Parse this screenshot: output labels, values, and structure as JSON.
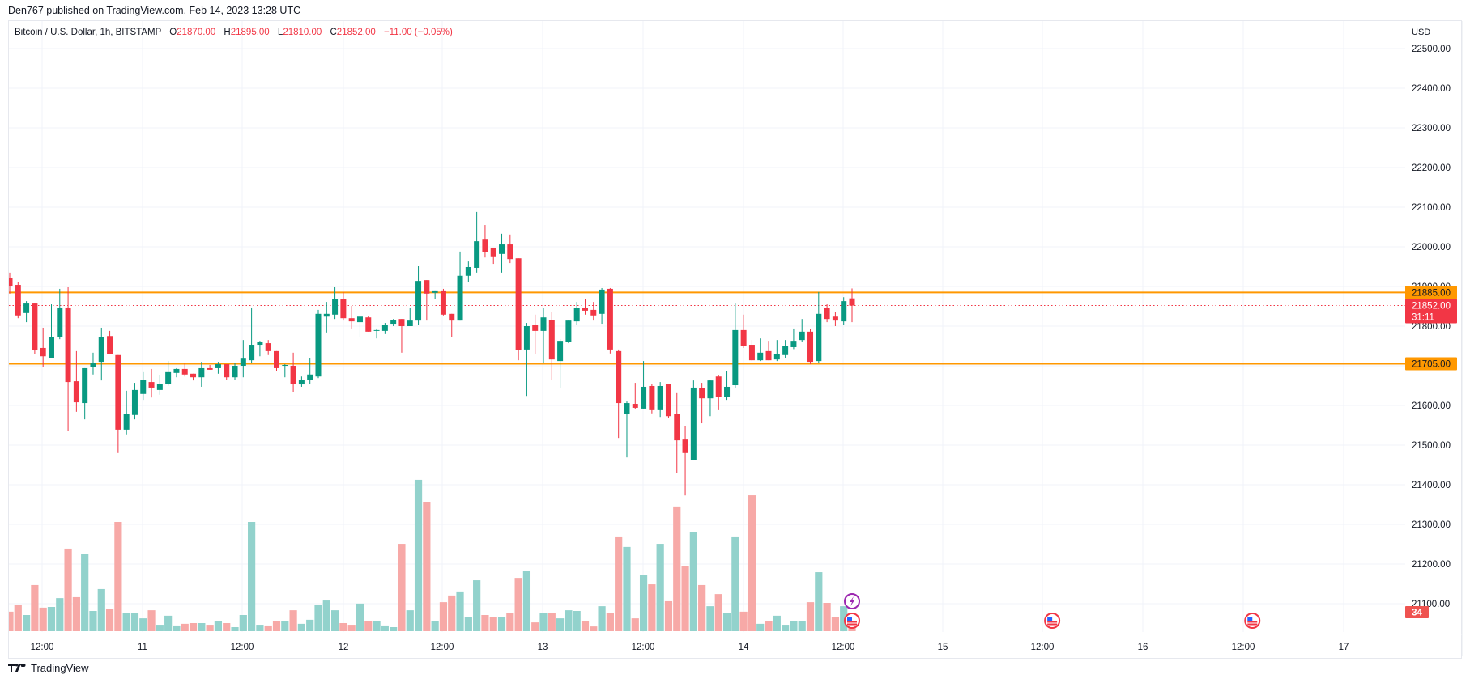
{
  "header": {
    "published_line": "Den767 published on TradingView.com, Feb 14, 2023 13:28 UTC"
  },
  "legend": {
    "symbol": "Bitcoin / U.S. Dollar, 1h, BITSTAMP",
    "open_key": "O",
    "open": "21870.00",
    "high_key": "H",
    "high": "21895.00",
    "low_key": "L",
    "low": "21810.00",
    "close_key": "C",
    "close": "21852.00",
    "change": "−11.00 (−0.05%)"
  },
  "price_axis": {
    "currency": "USD",
    "ticks": [
      "22500.00",
      "22400.00",
      "22300.00",
      "22200.00",
      "22100.00",
      "22000.00",
      "21900.00",
      "21800.00",
      "21700.00",
      "21600.00",
      "21500.00",
      "21400.00",
      "21300.00",
      "21200.00",
      "21100.00"
    ],
    "labels": [
      {
        "text": "21885.00",
        "price": 21885,
        "color": "#ff9800",
        "line": "solid"
      },
      {
        "text": "21705.00",
        "price": 21705,
        "color": "#ff9800",
        "line": "solid"
      },
      {
        "text": "21852.00",
        "sub": "31:11",
        "price": 21852,
        "color": "#f23645",
        "line": "dotted"
      }
    ],
    "volume_badge": {
      "text": "34",
      "color": "#ef5350"
    }
  },
  "time_axis": {
    "labels": [
      "12:00",
      "11",
      "12:00",
      "12",
      "12:00",
      "13",
      "12:00",
      "14",
      "12:00",
      "15",
      "12:00",
      "16",
      "12:00",
      "17"
    ]
  },
  "events": [
    {
      "type": "lightning-icon",
      "candle": 101,
      "row": 0,
      "color": "#9c27b0"
    },
    {
      "type": "us-flag-icon",
      "candle": 101,
      "row": 1,
      "color": "#f23645"
    },
    {
      "type": "us-flag-icon",
      "candle": 125,
      "row": 1,
      "color": "#f23645"
    },
    {
      "type": "us-flag-icon",
      "candle": 149,
      "row": 1,
      "color": "#f23645"
    }
  ],
  "footer": {
    "brand": "TradingView"
  },
  "colors": {
    "up": "#089981",
    "down": "#f23645",
    "vol_up": "#92d2cc",
    "vol_down": "#f7a9a7",
    "level": "#ff9800",
    "grid": "#f0f3fa"
  },
  "chart_data": {
    "type": "candlestick",
    "title": "Bitcoin / U.S. Dollar, 1h, BITSTAMP",
    "xlabel": "",
    "ylabel": "USD",
    "ylim": [
      21070,
      22530
    ],
    "grid": true,
    "x_start": "Feb 10 08:00",
    "interval": "1h",
    "horizontal_levels": [
      21885,
      21705
    ],
    "last_price": 21852,
    "fields": [
      "open",
      "high",
      "low",
      "close",
      "volume"
    ],
    "candles": [
      [
        21922,
        21935,
        21882,
        21902,
        82
      ],
      [
        21904,
        21912,
        21820,
        21827,
        109
      ],
      [
        21833,
        21863,
        21810,
        21857,
        68
      ],
      [
        21857,
        21857,
        21729,
        21739,
        194
      ],
      [
        21745,
        21796,
        21696,
        21724,
        99
      ],
      [
        21720,
        21855,
        21720,
        21773,
        102
      ],
      [
        21773,
        21894,
        21767,
        21847,
        139
      ],
      [
        21847,
        21898,
        21535,
        21659,
        347
      ],
      [
        21661,
        21737,
        21584,
        21608,
        143
      ],
      [
        21606,
        21694,
        21565,
        21694,
        326
      ],
      [
        21696,
        21733,
        21678,
        21706,
        85
      ],
      [
        21710,
        21796,
        21663,
        21773,
        177
      ],
      [
        21775,
        21788,
        21729,
        21729,
        92
      ],
      [
        21727,
        21727,
        21480,
        21539,
        459
      ],
      [
        21539,
        21637,
        21527,
        21578,
        78
      ],
      [
        21576,
        21657,
        21565,
        21639,
        75
      ],
      [
        21629,
        21684,
        21614,
        21665,
        54
      ],
      [
        21659,
        21692,
        21620,
        21645,
        88
      ],
      [
        21639,
        21676,
        21627,
        21655,
        27
      ],
      [
        21655,
        21712,
        21650,
        21684,
        65
      ],
      [
        21682,
        21694,
        21671,
        21692,
        24
      ],
      [
        21692,
        21708,
        21673,
        21678,
        31
      ],
      [
        21680,
        21680,
        21663,
        21671,
        34
      ],
      [
        21671,
        21710,
        21647,
        21694,
        34
      ],
      [
        21694,
        21702,
        21690,
        21690,
        27
      ],
      [
        21694,
        21710,
        21680,
        21704,
        44
      ],
      [
        21704,
        21704,
        21665,
        21671,
        34
      ],
      [
        21671,
        21706,
        21665,
        21700,
        17
      ],
      [
        21700,
        21765,
        21671,
        21718,
        68
      ],
      [
        21714,
        21847,
        21706,
        21753,
        459
      ],
      [
        21753,
        21763,
        21724,
        21761,
        27
      ],
      [
        21757,
        21765,
        21727,
        21737,
        24
      ],
      [
        21737,
        21737,
        21686,
        21694,
        41
      ],
      [
        21700,
        21704,
        21671,
        21702,
        41
      ],
      [
        21700,
        21733,
        21633,
        21655,
        88
      ],
      [
        21653,
        21673,
        21647,
        21665,
        31
      ],
      [
        21665,
        21720,
        21653,
        21678,
        48
      ],
      [
        21673,
        21841,
        21669,
        21831,
        112
      ],
      [
        21824,
        21861,
        21784,
        21831,
        129
      ],
      [
        21829,
        21898,
        21818,
        21869,
        88
      ],
      [
        21869,
        21886,
        21814,
        21820,
        34
      ],
      [
        21820,
        21851,
        21794,
        21812,
        27
      ],
      [
        21810,
        21824,
        21773,
        21824,
        116
      ],
      [
        21822,
        21826,
        21786,
        21786,
        41
      ],
      [
        21788,
        21794,
        21769,
        21790,
        41
      ],
      [
        21788,
        21808,
        21780,
        21804,
        24
      ],
      [
        21806,
        21818,
        21800,
        21816,
        17
      ],
      [
        21818,
        21818,
        21733,
        21800,
        367
      ],
      [
        21800,
        21847,
        21800,
        21814,
        88
      ],
      [
        21814,
        21951,
        21804,
        21914,
        636
      ],
      [
        21916,
        21916,
        21814,
        21882,
        544
      ],
      [
        21884,
        21890,
        21869,
        21890,
        44
      ],
      [
        21890,
        21894,
        21827,
        21829,
        122
      ],
      [
        21831,
        21831,
        21773,
        21814,
        150
      ],
      [
        21814,
        21988,
        21814,
        21927,
        167
      ],
      [
        21927,
        21963,
        21912,
        21949,
        58
      ],
      [
        21947,
        22088,
        21935,
        22014,
        214
      ],
      [
        22020,
        22055,
        21973,
        21986,
        68
      ],
      [
        21998,
        21998,
        21957,
        21976,
        58
      ],
      [
        21982,
        22033,
        21935,
        22006,
        58
      ],
      [
        22006,
        22031,
        21959,
        21969,
        75
      ],
      [
        21971,
        21971,
        21714,
        21739,
        224
      ],
      [
        21741,
        21808,
        21624,
        21800,
        255
      ],
      [
        21804,
        21829,
        21729,
        21788,
        37
      ],
      [
        21788,
        21845,
        21706,
        21822,
        75
      ],
      [
        21816,
        21835,
        21665,
        21716,
        78
      ],
      [
        21712,
        21767,
        21645,
        21763,
        54
      ],
      [
        21761,
        21814,
        21757,
        21814,
        88
      ],
      [
        21812,
        21861,
        21804,
        21845,
        85
      ],
      [
        21845,
        21869,
        21829,
        21839,
        44
      ],
      [
        21841,
        21861,
        21814,
        21827,
        20
      ],
      [
        21831,
        21896,
        21806,
        21892,
        105
      ],
      [
        21894,
        21896,
        21731,
        21741,
        78
      ],
      [
        21737,
        21741,
        21518,
        21606,
        398
      ],
      [
        21578,
        21610,
        21469,
        21606,
        354
      ],
      [
        21604,
        21657,
        21590,
        21594,
        54
      ],
      [
        21592,
        21712,
        21590,
        21647,
        235
      ],
      [
        21649,
        21655,
        21580,
        21588,
        197
      ],
      [
        21588,
        21659,
        21571,
        21649,
        367
      ],
      [
        21655,
        21655,
        21569,
        21573,
        126
      ],
      [
        21578,
        21631,
        21429,
        21512,
        524
      ],
      [
        21514,
        21549,
        21373,
        21480,
        275
      ],
      [
        21462,
        21663,
        21462,
        21645,
        415
      ],
      [
        21643,
        21657,
        21555,
        21618,
        194
      ],
      [
        21618,
        21665,
        21573,
        21663,
        105
      ],
      [
        21673,
        21676,
        21588,
        21622,
        156
      ],
      [
        21622,
        21686,
        21614,
        21647,
        78
      ],
      [
        21651,
        21857,
        21645,
        21790,
        398
      ],
      [
        21790,
        21829,
        21745,
        21751,
        82
      ],
      [
        21753,
        21765,
        21712,
        21714,
        571
      ],
      [
        21714,
        21769,
        21712,
        21733,
        31
      ],
      [
        21737,
        21763,
        21714,
        21714,
        41
      ],
      [
        21716,
        21765,
        21712,
        21729,
        65
      ],
      [
        21727,
        21765,
        21720,
        21749,
        27
      ],
      [
        21747,
        21794,
        21742,
        21763,
        44
      ],
      [
        21765,
        21818,
        21760,
        21786,
        41
      ],
      [
        21786,
        21792,
        21704,
        21710,
        122
      ],
      [
        21712,
        21886,
        21706,
        21831,
        248
      ],
      [
        21845,
        21855,
        21810,
        21818,
        119
      ],
      [
        21824,
        21835,
        21800,
        21814,
        61
      ],
      [
        21812,
        21873,
        21804,
        21863,
        105
      ],
      [
        21870,
        21895,
        21810,
        21852,
        34
      ]
    ]
  }
}
